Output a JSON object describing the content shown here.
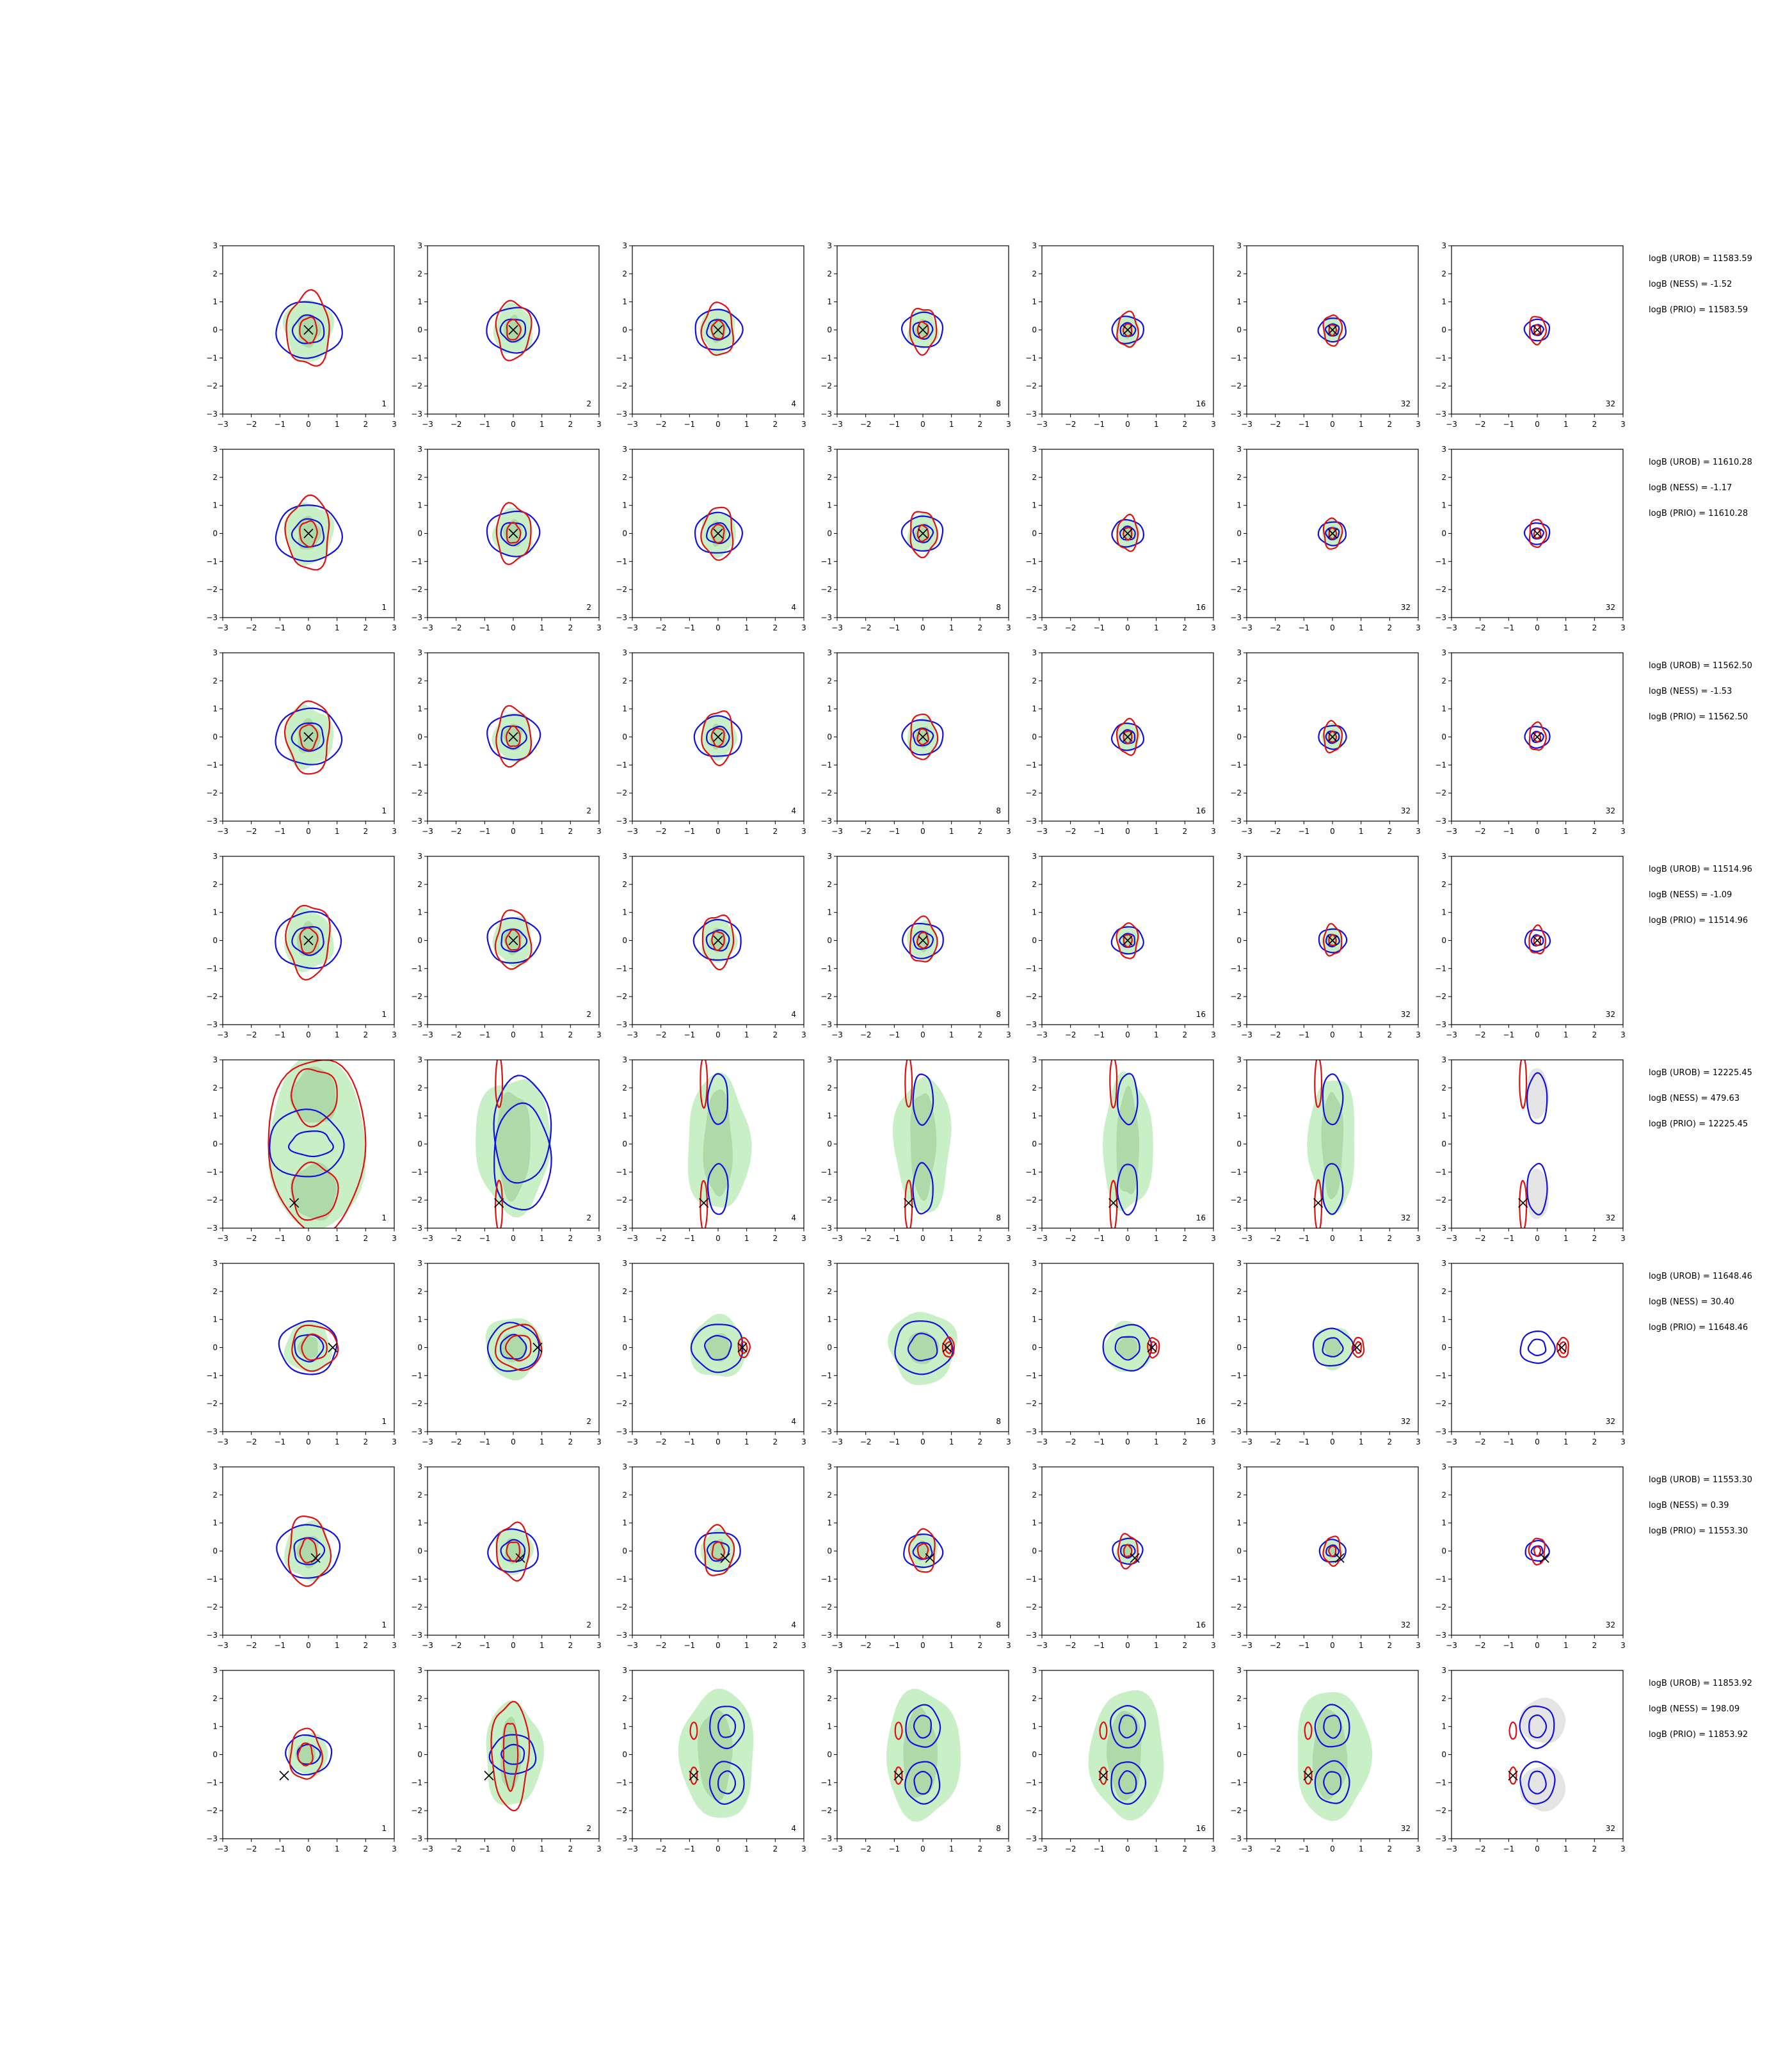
{
  "figure": {
    "tick_values": [
      -3,
      -2,
      -1,
      0,
      1,
      2,
      3
    ],
    "tick_labels": [
      "−3",
      "−2",
      "−1",
      "0",
      "1",
      "2",
      "3"
    ],
    "colors": {
      "outer_fill": "#c9efc6",
      "inner_fill": "#aed9a9",
      "gray_fill": "#e4e4e4",
      "blue": "#1010e0",
      "red": "#e01010",
      "marker": "#000000",
      "frame": "#000000"
    }
  },
  "chart_data": {
    "type": "contour-grid",
    "xlim": [
      -3,
      3
    ],
    "ylim": [
      -3,
      3
    ],
    "grid": false,
    "columns": [
      {
        "label": "1"
      },
      {
        "label": "2"
      },
      {
        "label": "4"
      },
      {
        "label": "8"
      },
      {
        "label": "16"
      },
      {
        "label": "32"
      },
      {
        "label": "32"
      }
    ],
    "rows": [
      {
        "annotations": [
          "logB (UROB) = 11583.59",
          "logB (NESS) = -1.52",
          "logB (PRIO) = 11583.59"
        ],
        "marker": [
          0,
          0
        ],
        "pattern": "center"
      },
      {
        "annotations": [
          "logB (UROB) = 11610.28",
          "logB (NESS) = -1.17",
          "logB (PRIO) = 11610.28"
        ],
        "marker": [
          0,
          0
        ],
        "pattern": "center"
      },
      {
        "annotations": [
          "logB (UROB) = 11562.50",
          "logB (NESS) = -1.53",
          "logB (PRIO) = 11562.50"
        ],
        "marker": [
          0,
          0
        ],
        "pattern": "center"
      },
      {
        "annotations": [
          "logB (UROB) = 11514.96",
          "logB (NESS) = -1.09",
          "logB (PRIO) = 11514.96"
        ],
        "marker": [
          0,
          0
        ],
        "pattern": "center"
      },
      {
        "annotations": [
          "logB (UROB) = 12225.45",
          "logB (NESS) = 479.63",
          "logB (PRIO) = 12225.45"
        ],
        "marker": [
          -0.5,
          -2.1
        ],
        "pattern": "vertical-split"
      },
      {
        "annotations": [
          "logB (UROB) = 11648.46",
          "logB (NESS) = 30.40",
          "logB (PRIO) = 11648.46"
        ],
        "marker": [
          0.85,
          0
        ],
        "pattern": "right-shift"
      },
      {
        "annotations": [
          "logB (UROB) = 11553.30",
          "logB (NESS) = 0.39",
          "logB (PRIO) = 11553.30"
        ],
        "marker": [
          0.25,
          -0.25
        ],
        "pattern": "center-small"
      },
      {
        "annotations": [
          "logB (UROB) = 11853.92",
          "logB (NESS) = 198.09",
          "logB (PRIO) = 11853.92"
        ],
        "marker": [
          -0.85,
          -0.75
        ],
        "pattern": "left-split"
      }
    ]
  }
}
